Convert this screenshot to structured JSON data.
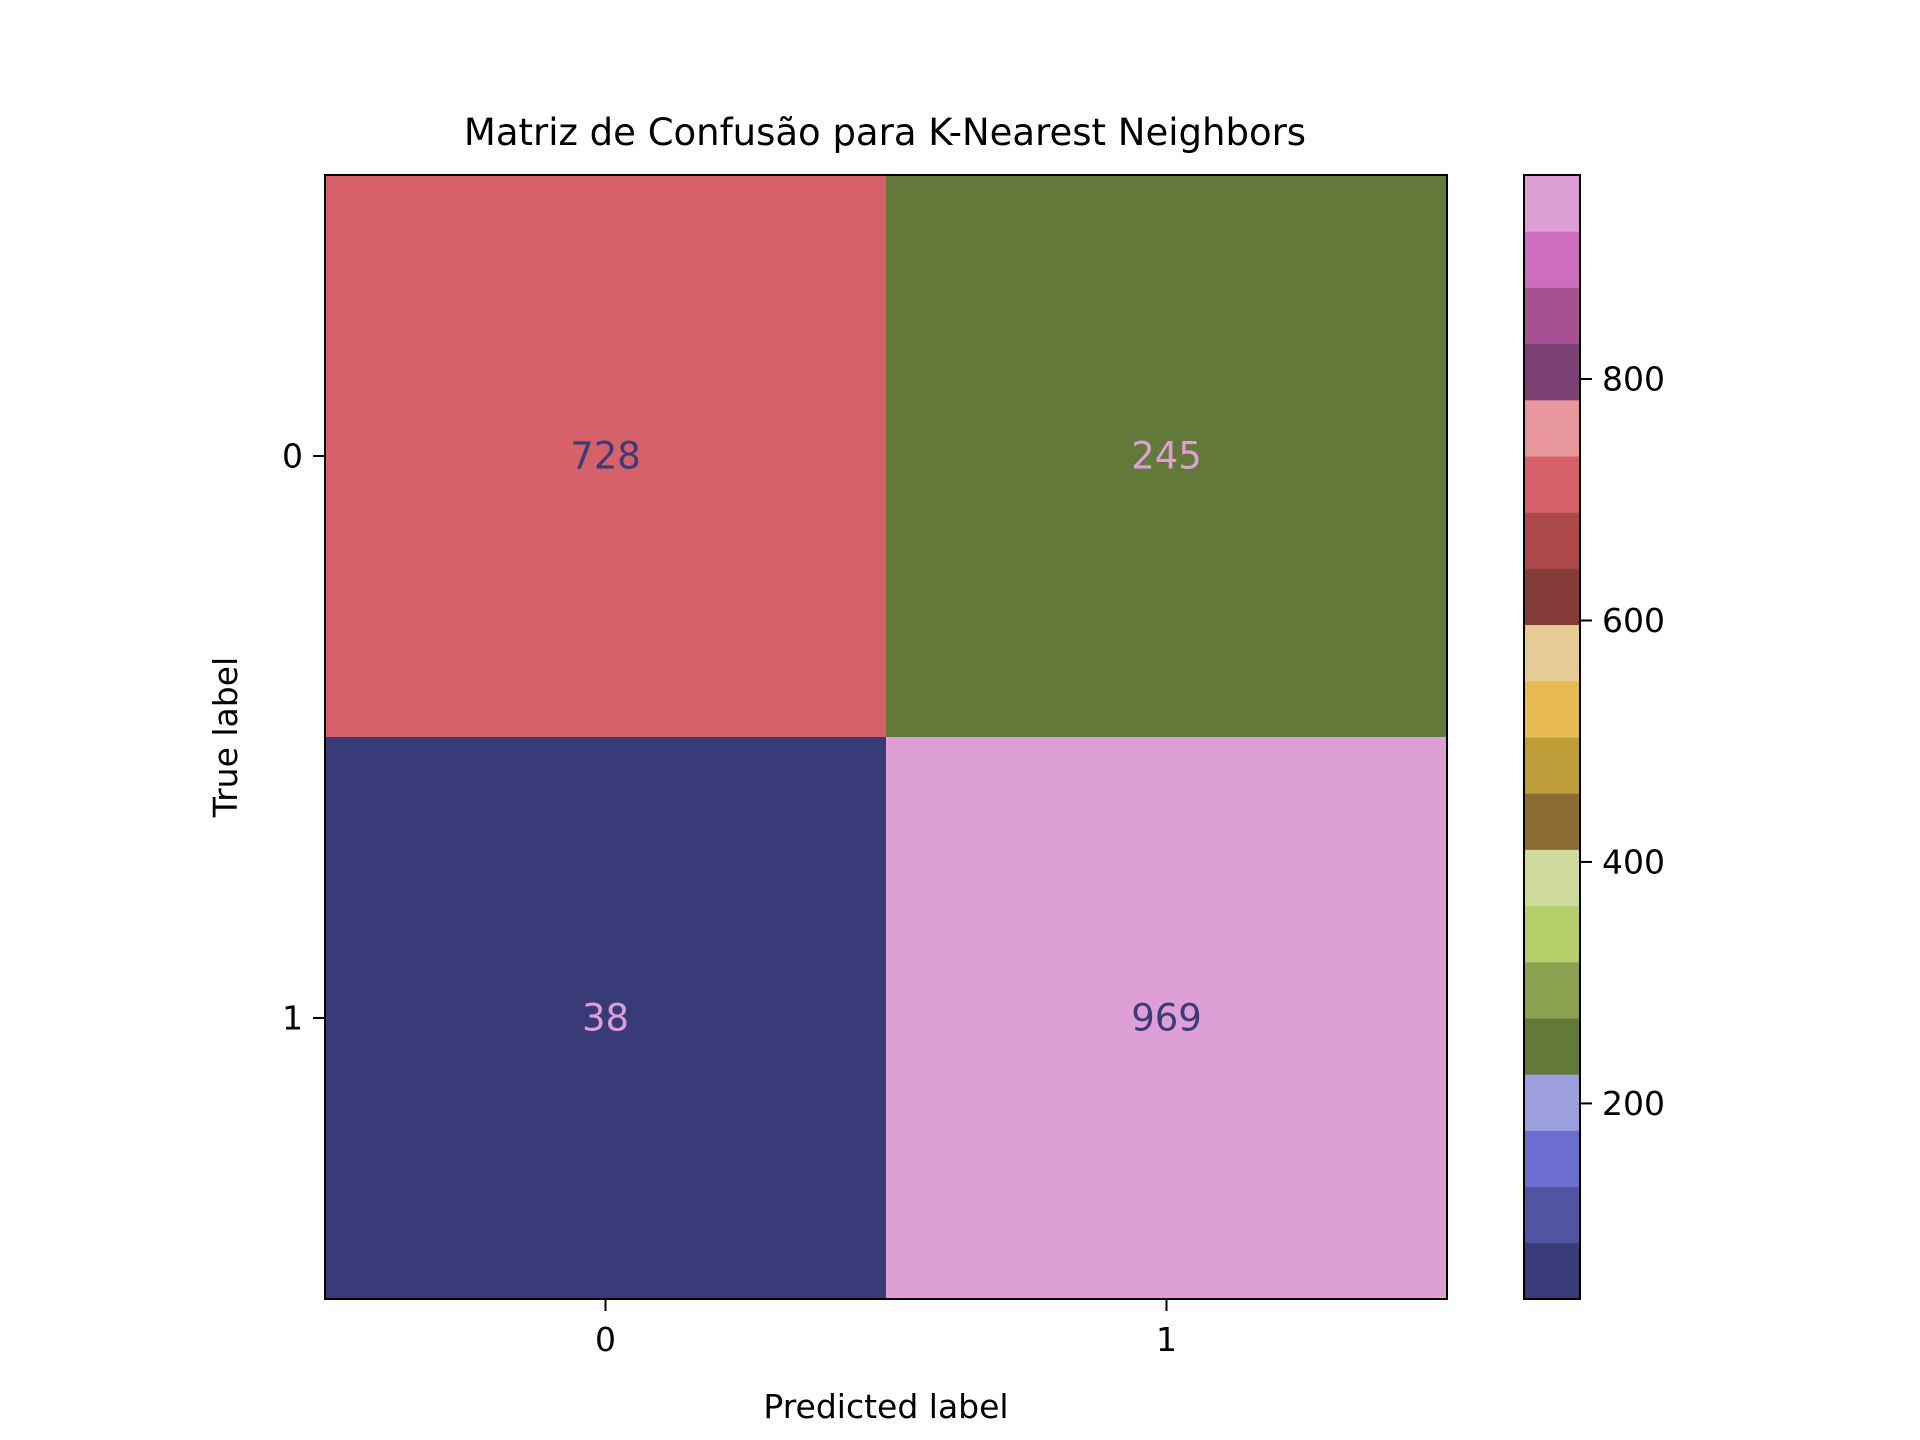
{
  "chart_data": {
    "type": "heatmap",
    "title": "Matriz de Confusão para K-Nearest Neighbors",
    "xlabel": "Predicted label",
    "ylabel": "True label",
    "x_categories": [
      "0",
      "1"
    ],
    "y_categories": [
      "0",
      "1"
    ],
    "values": [
      [
        728,
        245
      ],
      [
        38,
        969
      ]
    ],
    "cell_text_colors": [
      [
        "#3b3b7a",
        "#de9ed6"
      ],
      [
        "#de9ed6",
        "#3b3b7a"
      ]
    ],
    "colorbar": {
      "range": [
        38,
        969
      ],
      "ticks": [
        200,
        400,
        600,
        800
      ],
      "colors": [
        "#393b79",
        "#5254a3",
        "#6b6ecf",
        "#9c9ede",
        "#637939",
        "#8ca252",
        "#b5cf6b",
        "#cedb9c",
        "#8c6d31",
        "#bd9e39",
        "#e7ba52",
        "#e7cb94",
        "#843c39",
        "#ad494a",
        "#d6616b",
        "#e7969c",
        "#7b4173",
        "#a55194",
        "#ce6dbd",
        "#de9ed6"
      ]
    }
  }
}
